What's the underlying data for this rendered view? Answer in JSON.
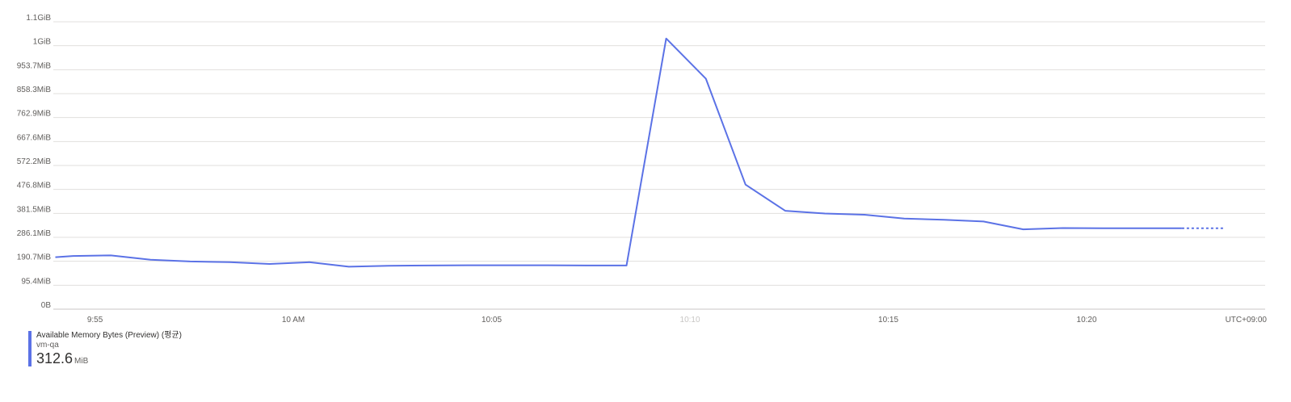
{
  "chart_data": {
    "type": "line",
    "x": [
      "9:54",
      "9:55",
      "9:56",
      "9:57",
      "9:58",
      "9:59",
      "10:00",
      "10:01",
      "10:02",
      "10:03",
      "10:04",
      "10:05",
      "10:06",
      "10:07",
      "10:08",
      "10:09",
      "10:10",
      "10:11",
      "10:12",
      "10:13",
      "10:14",
      "10:15",
      "10:16",
      "10:17",
      "10:18",
      "10:19",
      "10:20",
      "10:21",
      "10:22",
      "10:23"
    ],
    "x_ticks": [
      "9:55",
      "10 AM",
      "10:05",
      "10:10",
      "10:15",
      "10:20"
    ],
    "x_tick_minutes": [
      -5,
      0,
      5,
      10,
      15,
      20
    ],
    "x_range_minutes": [
      -6.05,
      24.5
    ],
    "x_extra_label": "UTC+09:00",
    "y_ticks": [
      "0B",
      "95.4MiB",
      "190.7MiB",
      "286.1MiB",
      "381.5MiB",
      "476.8MiB",
      "572.2MiB",
      "667.6MiB",
      "762.9MiB",
      "858.3MiB",
      "953.7MiB",
      "1GiB",
      "1.1GiB"
    ],
    "ylim_mib": [
      0,
      1144.4
    ],
    "grid": true,
    "series": [
      {
        "name": "Available Memory Bytes (Preview) (평균)",
        "color": "#5b72e6",
        "x_minutes": [
          -6,
          -5.55,
          -4.6,
          -3.6,
          -2.6,
          -1.6,
          -0.6,
          0.4,
          1.4,
          2.4,
          3.4,
          4.4,
          5.4,
          6.4,
          7.4,
          8.4,
          9.4,
          10.4,
          11.4,
          12.4,
          13.4,
          14.4,
          15.4,
          16.4,
          17.4,
          18.4,
          19.4,
          20.4,
          21.4,
          22.4
        ],
        "values_mib": [
          207,
          212,
          214,
          197,
          190,
          187,
          180,
          187,
          169,
          173,
          174,
          175,
          175,
          175,
          174,
          174,
          1078,
          918,
          496,
          392,
          381,
          376,
          361,
          356,
          349,
          318,
          323,
          322,
          322,
          322
        ],
        "projected": {
          "x_minutes": [
            22.4,
            23.5
          ],
          "values_mib": [
            322,
            322
          ]
        }
      }
    ]
  },
  "legend": {
    "title": "Available Memory Bytes (Preview) (평균)",
    "resource": "vm-qa",
    "value": "312.6",
    "unit": "MiB",
    "color": "#5b72e6"
  }
}
